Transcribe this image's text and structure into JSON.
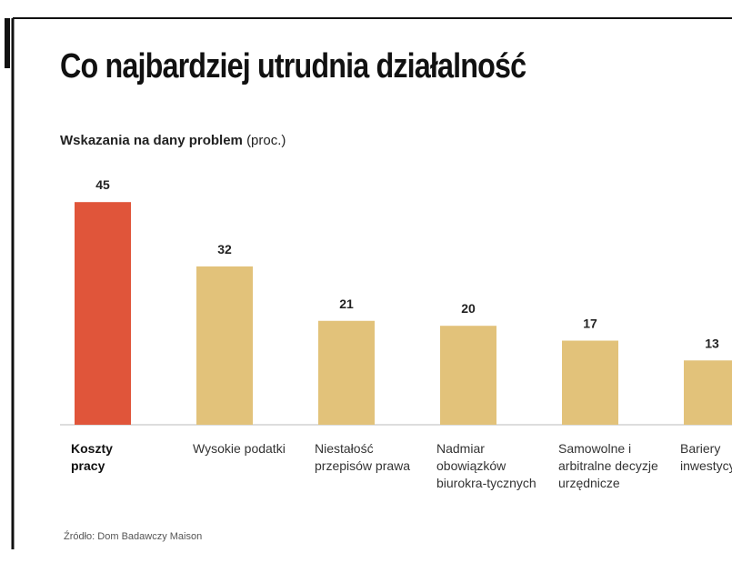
{
  "chart_data": {
    "type": "bar",
    "title": "Co najbardziej utrudnia działalność",
    "subtitle": "Wskazania na dany problem",
    "unit": "(proc.)",
    "source": "Źródło: Dom Badawczy Maison",
    "categories": [
      "Koszty pracy",
      "Wysokie podatki",
      "Niestałość przepisów prawa",
      "Nadmiar obowiązków biurokra-tycznych",
      "Samowolne i arbitralne decyzje urzędnicze",
      "Bariery inwestycyjne"
    ],
    "values": [
      45,
      32,
      21,
      20,
      17,
      13
    ],
    "colors": [
      "#e0553a",
      "#e2c27a",
      "#e2c27a",
      "#e2c27a",
      "#e2c27a",
      "#e2c27a"
    ],
    "ylim": [
      0,
      50
    ]
  }
}
